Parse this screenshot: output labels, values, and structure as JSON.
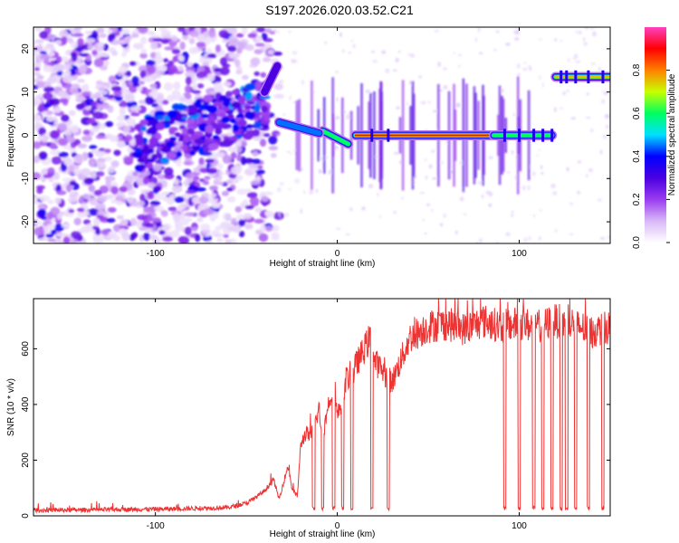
{
  "title": "S197.2026.020.03.52.C21",
  "chart_data": [
    {
      "type": "heatmap",
      "xlabel": "Height of straight line (km)",
      "ylabel": "Frequency (Hz)",
      "colorbar_label": "Normalized spectral amplitude",
      "xlim": [
        -167,
        150
      ],
      "ylim": [
        -25,
        25
      ],
      "xticks": [
        -100,
        0,
        100
      ],
      "yticks": [
        -20,
        -10,
        0,
        10,
        20
      ],
      "colorbar_ticks": [
        0.0,
        0.2,
        0.4,
        0.6,
        0.8
      ],
      "colorbar_range": [
        0,
        1
      ],
      "colormap": [
        "#ffffff",
        "#d8b8f8",
        "#9a3cf0",
        "#4a00e0",
        "#0000ff",
        "#00e0ff",
        "#00ff60",
        "#c8ff00",
        "#ff8000",
        "#ff0000",
        "#ff40c0"
      ],
      "tones": [
        {
          "x0": -8,
          "x1": 6,
          "freq_start": 1,
          "freq_end": -2,
          "amplitude": 0.6
        },
        {
          "x0": 10,
          "x1": 86,
          "freq": 0,
          "amplitude": 0.95
        },
        {
          "x0": 86,
          "x1": 118,
          "freq": 0,
          "amplitude": 0.7
        },
        {
          "x0": 120,
          "x1": 150,
          "freq": 13.5,
          "amplitude": 0.75
        },
        {
          "x0": -32,
          "x1": -10,
          "freq_start": 3,
          "freq_end": 0.5,
          "amplitude": 0.45
        },
        {
          "x0": -40,
          "x1": -33,
          "freq_start": 10,
          "freq_end": 16,
          "amplitude": 0.4
        }
      ]
    },
    {
      "type": "line",
      "xlabel": "Height of straight line (km)",
      "ylabel": "SNR (10 * v/v)",
      "xlim": [
        -167,
        150
      ],
      "ylim": [
        0,
        780
      ],
      "xticks": [
        -100,
        0,
        100
      ],
      "yticks": [
        0,
        200,
        400,
        600
      ],
      "color": "#ee3333",
      "series": [
        {
          "x": [
            -167,
            -130,
            -90,
            -60,
            -50,
            -45,
            -40,
            -35,
            -32,
            -30,
            -27,
            -25,
            -22,
            -20,
            -17,
            -15,
            -12,
            -10,
            -8,
            -5,
            -2,
            0,
            3,
            5,
            8,
            10,
            15,
            18,
            20,
            25,
            30,
            40,
            50,
            60,
            70,
            80,
            90,
            100,
            110,
            120,
            130,
            140,
            150
          ],
          "y": [
            20,
            22,
            25,
            30,
            45,
            65,
            90,
            130,
            60,
            110,
            180,
            100,
            70,
            260,
            300,
            280,
            340,
            380,
            280,
            400,
            460,
            360,
            420,
            500,
            480,
            540,
            600,
            640,
            560,
            520,
            480,
            640,
            680,
            690,
            670,
            700,
            680,
            690,
            680,
            700,
            690,
            660,
            680
          ]
        }
      ],
      "dropouts": [
        -13,
        -8,
        -2,
        3,
        8,
        19,
        28,
        92,
        100,
        108,
        113,
        118,
        123,
        126,
        131,
        138,
        146
      ],
      "dropout_level": 20
    }
  ]
}
